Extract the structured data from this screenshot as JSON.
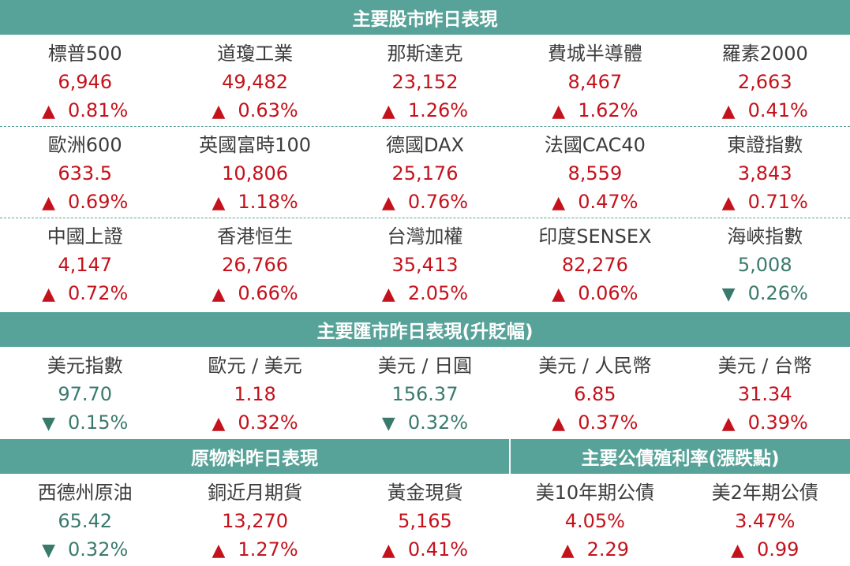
{
  "stock_header": "主要股市昨日表現",
  "stocks": [
    {
      "name": "標普500",
      "value": "6,946",
      "change": "0.81%",
      "dir": "up"
    },
    {
      "name": "道瓊工業",
      "value": "49,482",
      "change": "0.63%",
      "dir": "up"
    },
    {
      "name": "那斯達克",
      "value": "23,152",
      "change": "1.26%",
      "dir": "up"
    },
    {
      "name": "費城半導體",
      "value": "8,467",
      "change": "1.62%",
      "dir": "up"
    },
    {
      "name": "羅素2000",
      "value": "2,663",
      "change": "0.41%",
      "dir": "up"
    },
    {
      "name": "歐洲600",
      "value": "633.5",
      "change": "0.69%",
      "dir": "up"
    },
    {
      "name": "英國富時100",
      "value": "10,806",
      "change": "1.18%",
      "dir": "up"
    },
    {
      "name": "德國DAX",
      "value": "25,176",
      "change": "0.76%",
      "dir": "up"
    },
    {
      "name": "法國CAC40",
      "value": "8,559",
      "change": "0.47%",
      "dir": "up"
    },
    {
      "name": "東證指數",
      "value": "3,843",
      "change": "0.71%",
      "dir": "up"
    },
    {
      "name": "中國上證",
      "value": "4,147",
      "change": "0.72%",
      "dir": "up"
    },
    {
      "name": "香港恒生",
      "value": "26,766",
      "change": "0.66%",
      "dir": "up"
    },
    {
      "name": "台灣加權",
      "value": "35,413",
      "change": "2.05%",
      "dir": "up"
    },
    {
      "name": "印度SENSEX",
      "value": "82,276",
      "change": "0.06%",
      "dir": "up"
    },
    {
      "name": "海峽指數",
      "value": "5,008",
      "change": "0.26%",
      "dir": "down"
    }
  ],
  "fx_header": "主要匯市昨日表現(升貶幅)",
  "fx": [
    {
      "name": "美元指數",
      "value": "97.70",
      "change": "0.15%",
      "dir": "down"
    },
    {
      "name": "歐元 / 美元",
      "value": "1.18",
      "change": "0.32%",
      "dir": "up"
    },
    {
      "name": "美元 / 日圓",
      "value": "156.37",
      "change": "0.32%",
      "dir": "down"
    },
    {
      "name": "美元 / 人民幣",
      "value": "6.85",
      "change": "0.37%",
      "dir": "up"
    },
    {
      "name": "美元 / 台幣",
      "value": "31.34",
      "change": "0.39%",
      "dir": "up"
    }
  ],
  "commodity_header": "原物料昨日表現",
  "bond_header": "主要公債殖利率(漲跌點)",
  "commodities_bonds": [
    {
      "name": "西德州原油",
      "value": "65.42",
      "change": "0.32%",
      "dir": "down"
    },
    {
      "name": "銅近月期貨",
      "value": "13,270",
      "change": "1.27%",
      "dir": "up"
    },
    {
      "name": "黃金現貨",
      "value": "5,165",
      "change": "0.41%",
      "dir": "up"
    },
    {
      "name": "美10年期公債",
      "value": "4.05%",
      "change": "2.29",
      "dir": "up"
    },
    {
      "name": "美2年期公債",
      "value": "3.47%",
      "change": "0.99",
      "dir": "up"
    }
  ],
  "colors": {
    "header_bg": "#58a399",
    "up": "#c4121c",
    "down": "#3a7a6c"
  },
  "arrows": {
    "up": "▲",
    "down": "▼"
  }
}
